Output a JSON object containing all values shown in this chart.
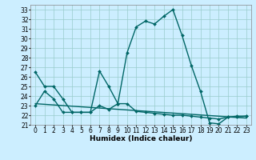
{
  "xlabel": "Humidex (Indice chaleur)",
  "x_ticks": [
    0,
    1,
    2,
    3,
    4,
    5,
    6,
    7,
    8,
    9,
    10,
    11,
    12,
    13,
    14,
    15,
    16,
    17,
    18,
    19,
    20,
    21,
    22,
    23
  ],
  "ylim": [
    21,
    33.5
  ],
  "xlim": [
    -0.5,
    23.5
  ],
  "yticks": [
    21,
    22,
    23,
    24,
    25,
    26,
    27,
    28,
    29,
    30,
    31,
    32,
    33
  ],
  "line1_x": [
    0,
    1,
    2,
    3,
    4,
    5,
    6,
    7,
    8,
    9,
    10,
    11,
    12,
    13,
    14,
    15,
    16,
    17,
    18,
    19,
    20,
    21,
    22,
    23
  ],
  "line1_y": [
    26.5,
    25.0,
    25.0,
    23.7,
    22.3,
    22.3,
    22.3,
    26.6,
    25.0,
    23.2,
    28.5,
    31.2,
    31.8,
    31.5,
    32.3,
    33.0,
    30.3,
    27.2,
    24.5,
    21.2,
    21.1,
    21.8,
    21.9,
    21.9
  ],
  "line2_x": [
    0,
    1,
    2,
    3,
    4,
    5,
    6,
    7,
    8,
    9,
    10,
    11,
    12,
    13,
    14,
    15,
    16,
    17,
    18,
    19,
    20,
    21,
    22,
    23
  ],
  "line2_y": [
    23.0,
    24.5,
    23.7,
    22.3,
    22.3,
    22.3,
    22.3,
    23.0,
    22.6,
    23.2,
    23.2,
    22.4,
    22.3,
    22.2,
    22.1,
    22.0,
    22.0,
    21.9,
    21.8,
    21.7,
    21.6,
    21.8,
    21.8,
    21.9
  ],
  "line3_x": [
    0,
    23
  ],
  "line3_y": [
    23.2,
    21.7
  ],
  "bg_color": "#cceeff",
  "grid_color": "#99cccc",
  "line_color": "#006666",
  "marker": "D",
  "marker_size": 2.0,
  "line_width": 1.0,
  "xlabel_fontsize": 6.5,
  "tick_fontsize": 5.5
}
